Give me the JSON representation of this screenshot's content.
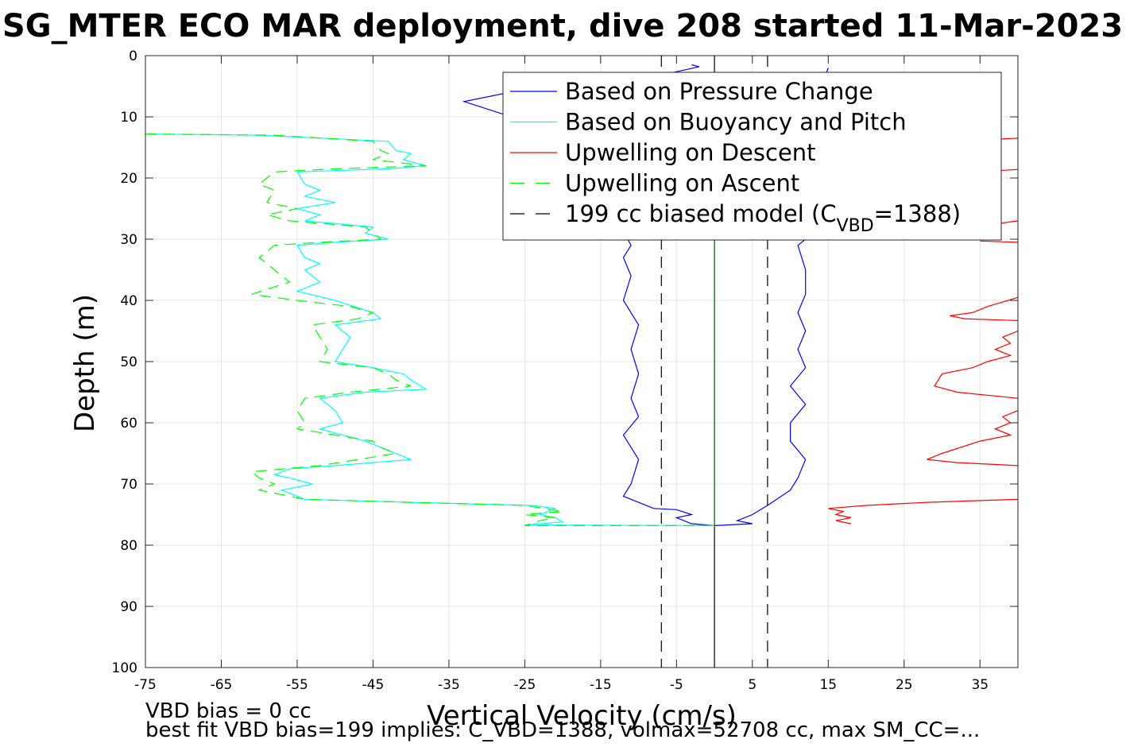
{
  "chart_data": {
    "type": "line",
    "title": "SG_MTER ECO MAR deployment, dive 208 started 11-Mar-2023",
    "xlabel": "Vertical Velocity (cm/s)",
    "ylabel": "Depth (m)",
    "xlim": [
      -75,
      40
    ],
    "ylim": [
      0,
      100
    ],
    "y_reversed": true,
    "grid": true,
    "x_ticks": [
      -75,
      -65,
      -55,
      -45,
      -35,
      -25,
      -15,
      -5,
      5,
      15,
      25,
      35
    ],
    "y_ticks": [
      0,
      10,
      20,
      30,
      40,
      50,
      60,
      70,
      80,
      90,
      100
    ],
    "legend_position": "top-right",
    "legend": [
      {
        "label": "Based on Pressure Change",
        "color": "#0000ff",
        "dash": "solid"
      },
      {
        "label": "Based on Buoyancy and Pitch",
        "color": "#00ffff",
        "dash": "solid"
      },
      {
        "label": "Upwelling on Descent",
        "color": "#ff0000",
        "dash": "solid"
      },
      {
        "label": "Upwelling on Ascent",
        "color": "#00ff00",
        "dash": "dashed"
      },
      {
        "label_prefix": "199 cc biased model (C",
        "label_sub": "VBD",
        "label_suffix": "=1388)",
        "color": "#000000",
        "dash": "dashed"
      }
    ],
    "series": [
      {
        "key": "pressure_descent",
        "color": "#0000ff",
        "dash": "solid",
        "points": [
          [
            -3,
            1.5
          ],
          [
            -2,
            1.8
          ],
          [
            -10,
            4
          ],
          [
            -25,
            5.5
          ],
          [
            -33,
            7.5
          ],
          [
            -28,
            9.5
          ],
          [
            -20,
            10
          ],
          [
            -11,
            31
          ],
          [
            -12,
            33
          ],
          [
            -11,
            36
          ],
          [
            -12,
            40
          ],
          [
            -10,
            44
          ],
          [
            -11,
            48
          ],
          [
            -10,
            52
          ],
          [
            -11,
            56
          ],
          [
            -10,
            59
          ],
          [
            -12,
            62
          ],
          [
            -10,
            66
          ],
          [
            -11,
            70
          ],
          [
            -12,
            72
          ],
          [
            -8,
            74
          ],
          [
            -5,
            74.2
          ],
          [
            -3,
            75
          ],
          [
            -5,
            75.5
          ],
          [
            -3,
            76.5
          ],
          [
            0,
            76.8
          ]
        ]
      },
      {
        "key": "pressure_ascent",
        "color": "#0000ff",
        "dash": "solid",
        "points": [
          [
            0,
            76.8
          ],
          [
            5,
            76.5
          ],
          [
            3,
            76
          ],
          [
            5,
            75
          ],
          [
            7,
            73.5
          ],
          [
            10,
            71
          ],
          [
            11,
            69
          ],
          [
            12,
            66
          ],
          [
            10,
            63
          ],
          [
            10,
            60
          ],
          [
            12,
            57
          ],
          [
            10,
            54
          ],
          [
            12,
            51
          ],
          [
            11,
            48
          ],
          [
            12,
            45
          ],
          [
            11,
            42
          ],
          [
            12,
            39
          ],
          [
            12,
            35
          ],
          [
            11,
            31
          ],
          [
            13,
            29
          ],
          [
            11,
            15
          ],
          [
            15,
            2
          ]
        ]
      },
      {
        "key": "buoyancy_pitch",
        "color": "#00ffff",
        "dash": "solid",
        "points": [
          [
            -75,
            12.8
          ],
          [
            -60,
            13
          ],
          [
            -43,
            14
          ],
          [
            -42,
            15.5
          ],
          [
            -40,
            16
          ],
          [
            -41,
            17
          ],
          [
            -38,
            18
          ],
          [
            -43,
            18.5
          ],
          [
            -55,
            19
          ],
          [
            -54,
            21
          ],
          [
            -52,
            22
          ],
          [
            -54,
            23
          ],
          [
            -50,
            24
          ],
          [
            -55,
            25
          ],
          [
            -52,
            26
          ],
          [
            -54,
            27
          ],
          [
            -45,
            28
          ],
          [
            -46,
            29
          ],
          [
            -43,
            30
          ],
          [
            -50,
            30.5
          ],
          [
            -55,
            31
          ],
          [
            -54,
            33
          ],
          [
            -52,
            34
          ],
          [
            -54,
            35
          ],
          [
            -52,
            37
          ],
          [
            -55,
            38.5
          ],
          [
            -50,
            40
          ],
          [
            -45,
            42
          ],
          [
            -44,
            43
          ],
          [
            -50,
            44
          ],
          [
            -48,
            46
          ],
          [
            -49,
            48
          ],
          [
            -50,
            50
          ],
          [
            -45,
            51
          ],
          [
            -41,
            52
          ],
          [
            -40,
            53
          ],
          [
            -38,
            54.5
          ],
          [
            -46,
            55
          ],
          [
            -52,
            56
          ],
          [
            -50,
            58
          ],
          [
            -49,
            60
          ],
          [
            -52,
            61
          ],
          [
            -49,
            62
          ],
          [
            -46,
            63
          ],
          [
            -42,
            65
          ],
          [
            -40,
            66
          ],
          [
            -50,
            67
          ],
          [
            -56,
            67.5
          ],
          [
            -58,
            68.5
          ],
          [
            -56,
            69
          ],
          [
            -53,
            70
          ],
          [
            -57,
            71
          ],
          [
            -54,
            72.5
          ],
          [
            -40,
            73
          ],
          [
            -24,
            73.5
          ],
          [
            -21,
            74
          ],
          [
            -23,
            75
          ],
          [
            -21,
            75.5
          ],
          [
            -20,
            76.2
          ],
          [
            -25,
            76.7
          ],
          [
            0,
            76.8
          ]
        ]
      },
      {
        "key": "upwelling_descent",
        "color": "#ff0000",
        "dash": "solid",
        "segments": [
          [
            [
              40,
              13.5
            ],
            [
              35,
              13.8
            ]
          ],
          [
            [
              40,
              18.6
            ],
            [
              36,
              18.9
            ]
          ],
          [
            [
              40,
              27
            ],
            [
              37,
              27.5
            ]
          ],
          [
            [
              40,
              30.5
            ],
            [
              35,
              30.3
            ]
          ],
          [
            [
              40,
              39.5
            ],
            [
              36,
              41
            ],
            [
              34,
              42
            ],
            [
              31,
              42.5
            ],
            [
              33,
              43
            ],
            [
              40,
              43.3
            ]
          ],
          [
            [
              40,
              45
            ],
            [
              38,
              46
            ],
            [
              39,
              47
            ],
            [
              37,
              48
            ],
            [
              39,
              49
            ],
            [
              36,
              50
            ],
            [
              34,
              51
            ],
            [
              30,
              52
            ],
            [
              29,
              54
            ],
            [
              32,
              55
            ],
            [
              40,
              56
            ]
          ],
          [
            [
              40,
              58
            ],
            [
              38,
              59
            ],
            [
              39,
              60
            ],
            [
              37,
              61
            ],
            [
              39,
              62
            ],
            [
              35,
              63
            ],
            [
              30,
              65
            ],
            [
              28,
              66
            ],
            [
              32,
              66.5
            ],
            [
              40,
              67
            ]
          ],
          [
            [
              40,
              72.5
            ],
            [
              28,
              73
            ],
            [
              20,
              73.5
            ],
            [
              15,
              74
            ],
            [
              17,
              74.5
            ],
            [
              16,
              75
            ],
            [
              18,
              75.5
            ],
            [
              16,
              76
            ],
            [
              18,
              76.5
            ]
          ]
        ]
      },
      {
        "key": "upwelling_ascent",
        "color": "#00ff00",
        "dash": "dashed",
        "points": [
          [
            -75,
            12.8
          ],
          [
            -58,
            13
          ],
          [
            -45,
            14
          ],
          [
            -44,
            15.5
          ],
          [
            -43,
            16
          ],
          [
            -45,
            17
          ],
          [
            -38,
            18
          ],
          [
            -50,
            18.5
          ],
          [
            -58,
            19
          ],
          [
            -60,
            21
          ],
          [
            -58,
            22
          ],
          [
            -59,
            24
          ],
          [
            -55,
            25
          ],
          [
            -59,
            26
          ],
          [
            -56,
            27
          ],
          [
            -46,
            28
          ],
          [
            -45,
            29
          ],
          [
            -44,
            30
          ],
          [
            -52,
            30.5
          ],
          [
            -58,
            31
          ],
          [
            -60,
            33
          ],
          [
            -58,
            35
          ],
          [
            -56,
            37
          ],
          [
            -61,
            39
          ],
          [
            -55,
            40
          ],
          [
            -48,
            41
          ],
          [
            -45,
            42
          ],
          [
            -47,
            43
          ],
          [
            -53,
            44
          ],
          [
            -52,
            46
          ],
          [
            -51,
            48
          ],
          [
            -52,
            50
          ],
          [
            -45,
            51
          ],
          [
            -43,
            52
          ],
          [
            -42,
            53
          ],
          [
            -40,
            54
          ],
          [
            -48,
            55
          ],
          [
            -54,
            56
          ],
          [
            -55,
            58
          ],
          [
            -54,
            60
          ],
          [
            -55,
            61
          ],
          [
            -50,
            62
          ],
          [
            -45,
            63
          ],
          [
            -44,
            64
          ],
          [
            -42,
            65
          ],
          [
            -52,
            67
          ],
          [
            -61,
            68
          ],
          [
            -60,
            69
          ],
          [
            -58,
            70
          ],
          [
            -60,
            71
          ],
          [
            -54,
            72.5
          ],
          [
            -40,
            73
          ],
          [
            -25,
            73.5
          ],
          [
            -20,
            74.5
          ],
          [
            -25,
            75
          ],
          [
            -21,
            75.5
          ],
          [
            -23,
            76
          ],
          [
            -25,
            76.8
          ],
          [
            0,
            76.8
          ]
        ]
      },
      {
        "key": "model_left",
        "color": "#000000",
        "dash": "dashed",
        "points": [
          [
            -7,
            0
          ],
          [
            -7,
            100
          ]
        ]
      },
      {
        "key": "model_right",
        "color": "#000000",
        "dash": "dashed",
        "points": [
          [
            7,
            0
          ],
          [
            7,
            100
          ]
        ]
      },
      {
        "key": "zero_line",
        "color": "#000000",
        "dash": "solid",
        "points": [
          [
            0,
            0
          ],
          [
            0,
            100
          ]
        ]
      },
      {
        "key": "zero_line_green",
        "color": "#008000",
        "dash": "solid",
        "points": [
          [
            0,
            30
          ],
          [
            0,
            77
          ]
        ]
      }
    ]
  },
  "annotations": {
    "vbd_bias": "VBD bias = 0 cc",
    "best_fit": "best fit VBD bias=199 implies: C_VBD=1388, volmax=52708 cc, max SM_CC=..."
  }
}
